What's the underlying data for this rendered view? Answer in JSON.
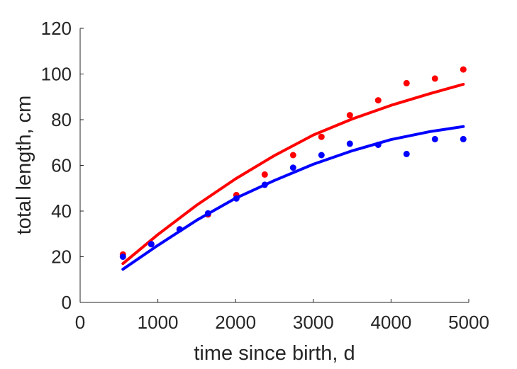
{
  "chart_data": {
    "type": "scatter",
    "xlabel": "time since birth, d",
    "ylabel": "total length, cm",
    "xlim": [
      0,
      5000
    ],
    "ylim": [
      0,
      120
    ],
    "xticks": [
      0,
      1000,
      2000,
      3000,
      4000,
      5000
    ],
    "yticks": [
      0,
      20,
      40,
      60,
      80,
      100,
      120
    ],
    "grid": false,
    "series": [
      {
        "color": "#ff0000",
        "points": {
          "x": [
            550,
            915,
            1280,
            1645,
            2010,
            2375,
            2740,
            3105,
            3470,
            3835,
            4200,
            4565,
            4930
          ],
          "y": [
            21,
            25.5,
            32,
            38.5,
            47,
            56,
            64.5,
            72.5,
            82,
            88.5,
            96,
            98,
            102
          ]
        },
        "fit": {
          "x": [
            550,
            1000,
            1500,
            2000,
            2500,
            3000,
            3500,
            4000,
            4500,
            4930
          ],
          "y": [
            17,
            29.7,
            42.6,
            54.1,
            64.3,
            73.3,
            80.3,
            86.3,
            91.4,
            95.5
          ]
        }
      },
      {
        "color": "#0000ff",
        "points": {
          "x": [
            550,
            915,
            1280,
            1645,
            2010,
            2375,
            2740,
            3105,
            3470,
            3835,
            4200,
            4565,
            4930
          ],
          "y": [
            20,
            25.5,
            32,
            39,
            45.5,
            51.5,
            59,
            64.5,
            69.5,
            69,
            65,
            71.5,
            71.5
          ]
        },
        "fit": {
          "x": [
            550,
            1000,
            1500,
            2000,
            2500,
            3000,
            3500,
            4000,
            4500,
            4930
          ],
          "y": [
            14.5,
            25,
            36,
            45.6,
            53.4,
            60.5,
            66.4,
            71.3,
            74.8,
            77
          ]
        }
      }
    ]
  }
}
